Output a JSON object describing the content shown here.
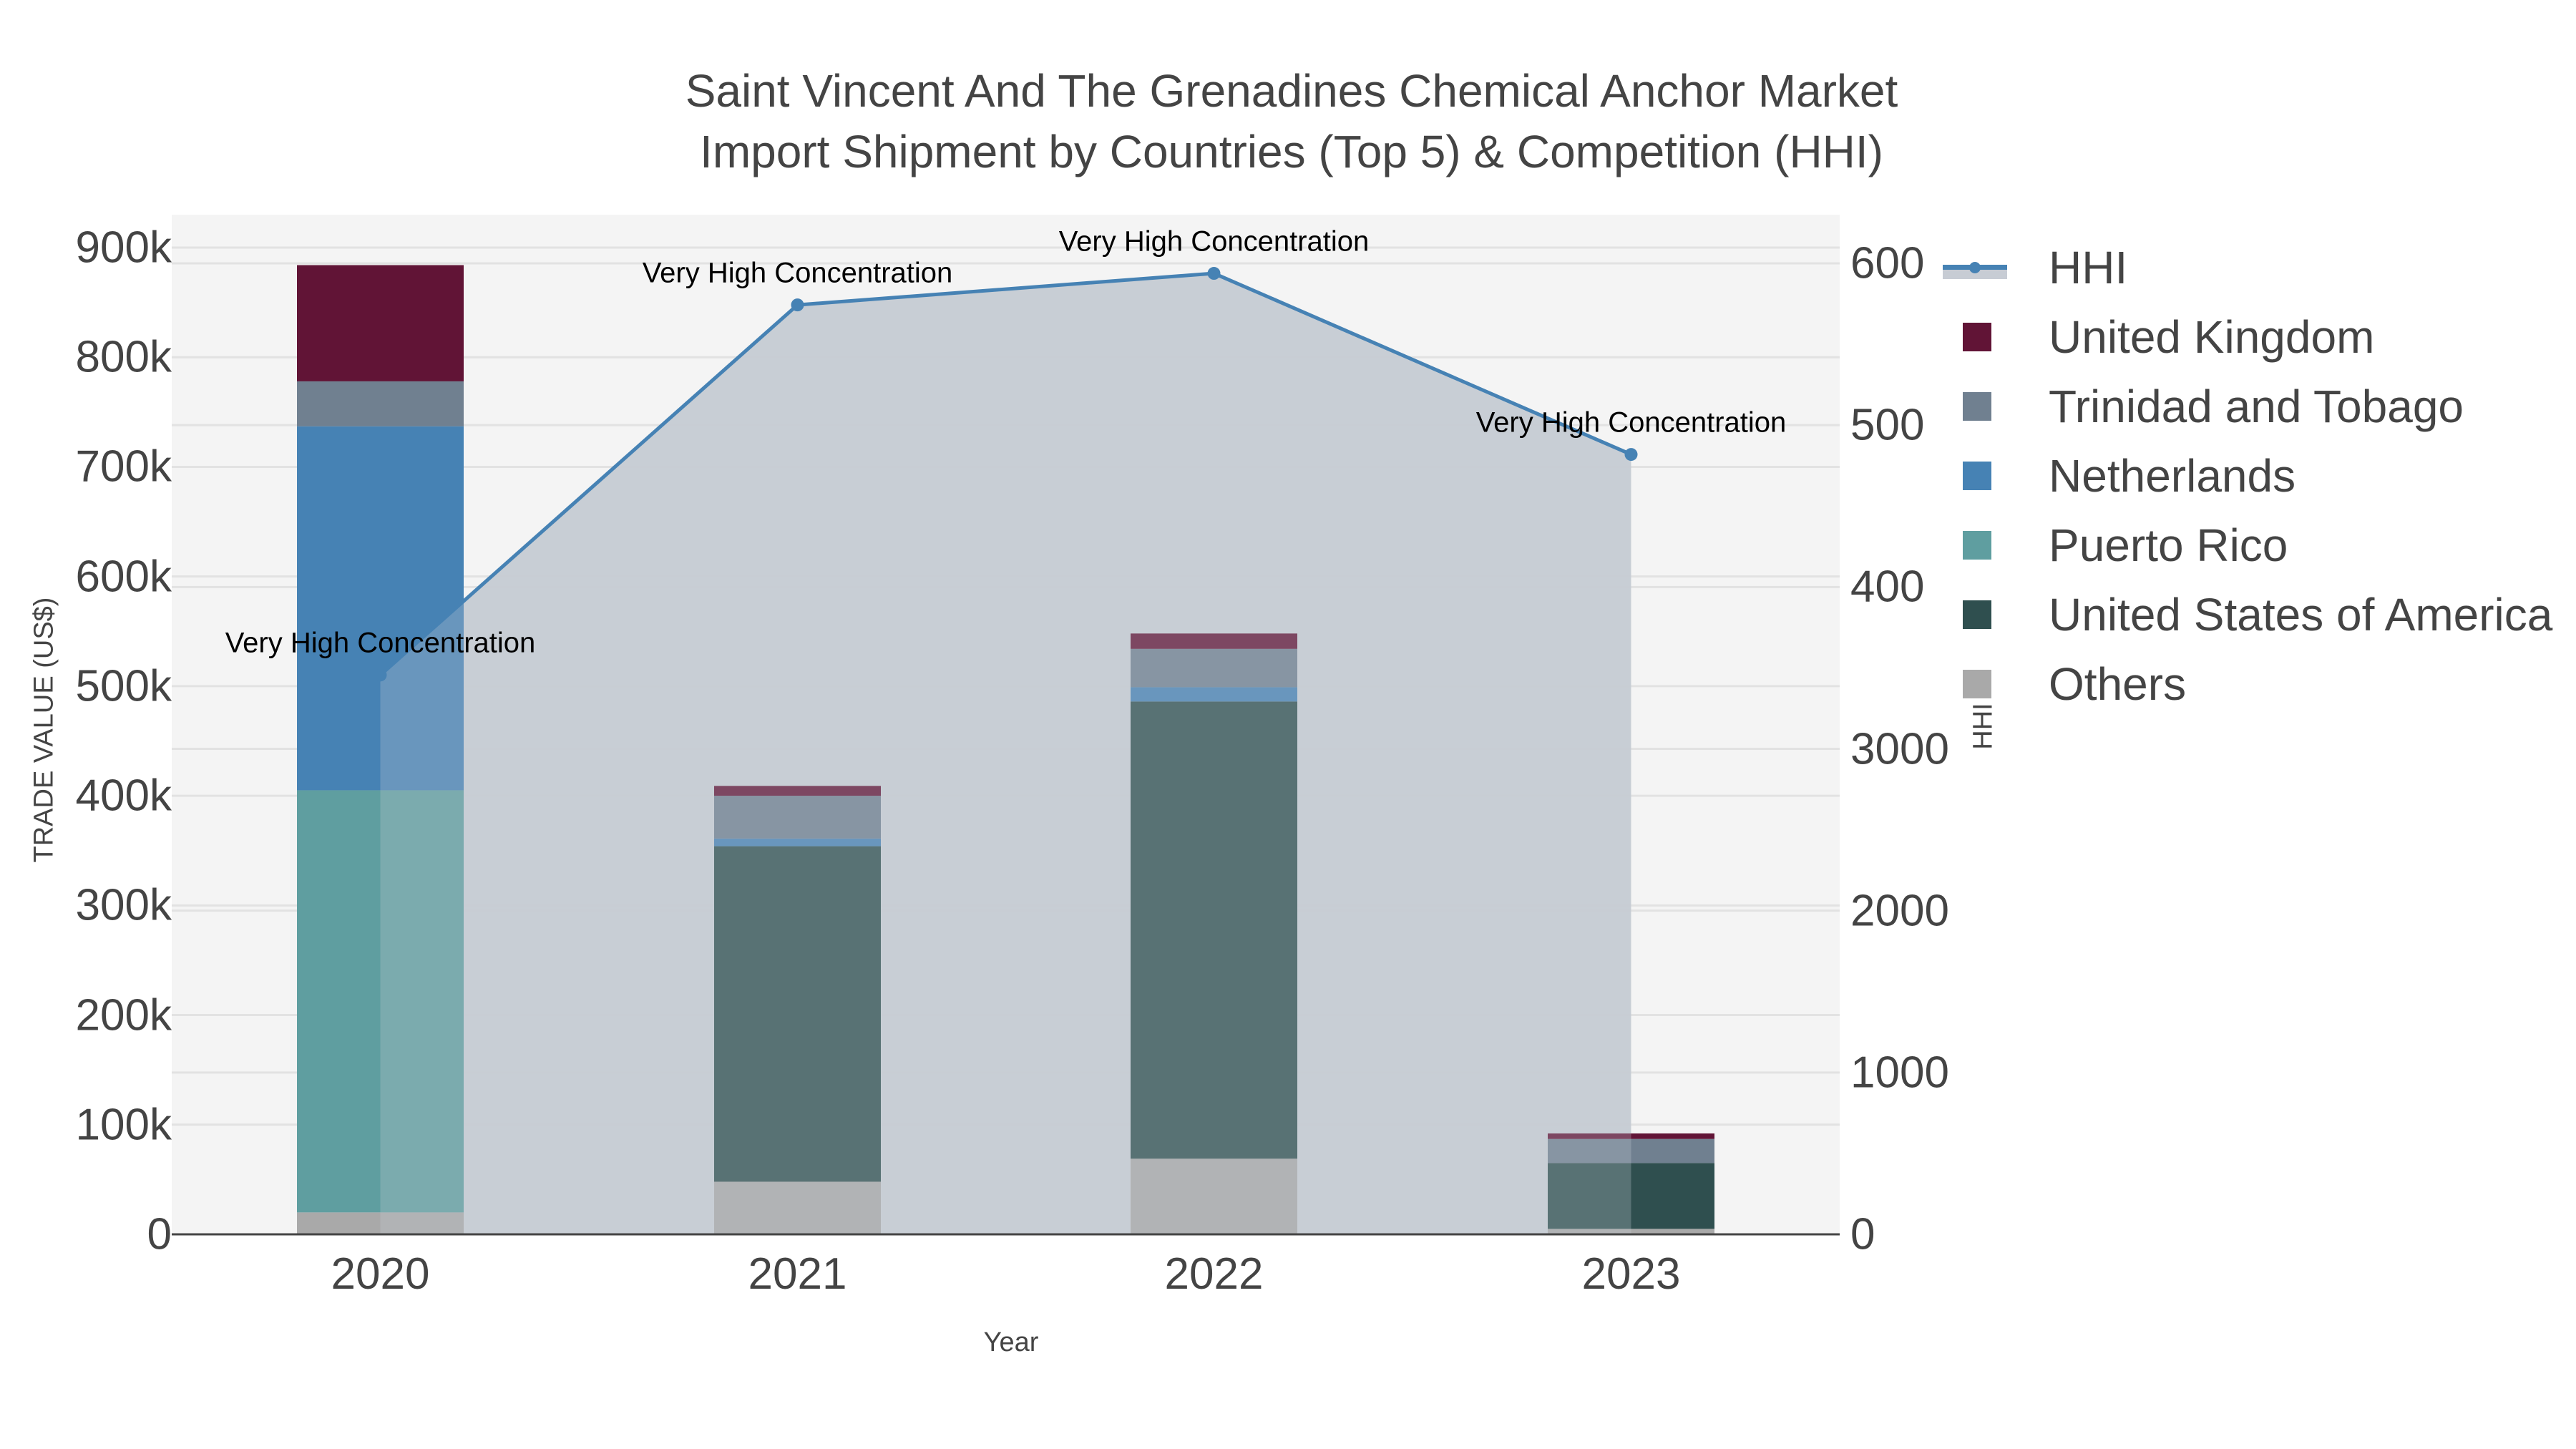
{
  "title": {
    "line1": "Saint Vincent And The Grenadines Chemical Anchor Market",
    "line2": "Import Shipment by Countries (Top 5) & Competition (HHI)"
  },
  "axes": {
    "x_title": "Year",
    "y_title": "TRADE VALUE (US$)",
    "y2_title": "HHI",
    "x_ticks": [
      "2020",
      "2021",
      "2022",
      "2023"
    ],
    "y_ticks": [
      "0",
      "100k",
      "200k",
      "300k",
      "400k",
      "500k",
      "600k",
      "700k",
      "800k",
      "900k"
    ],
    "y2_ticks": [
      "0",
      "1000",
      "2000",
      "3000",
      "400",
      "500",
      "600"
    ]
  },
  "legend": {
    "items": [
      {
        "label": "HHI",
        "type": "line",
        "color": "#4682b4"
      },
      {
        "label": "United Kingdom",
        "type": "bar",
        "color": "#611436"
      },
      {
        "label": "Trinidad and Tobago",
        "type": "bar",
        "color": "#708090"
      },
      {
        "label": "Netherlands",
        "type": "bar",
        "color": "#4682b4"
      },
      {
        "label": "Puerto Rico",
        "type": "bar",
        "color": "#5f9ea0"
      },
      {
        "label": "United States of America",
        "type": "bar",
        "color": "#2f4f4f"
      },
      {
        "label": "Others",
        "type": "bar",
        "color": "#a9a9a9"
      }
    ]
  },
  "annotations": [
    {
      "text": "Very High Concentration",
      "year": "2020"
    },
    {
      "text": "Very High Concentration",
      "year": "2021"
    },
    {
      "text": "Very High Concentration",
      "year": "2022"
    },
    {
      "text": "Very High Concentration",
      "year": "2023"
    }
  ],
  "chart_data": {
    "type": "bar",
    "stacked": true,
    "title": "Saint Vincent And The Grenadines Chemical Anchor Market Import Shipment by Countries (Top 5) & Competition (HHI)",
    "xlabel": "Year",
    "ylabel": "TRADE VALUE (US$)",
    "y2label": "HHI",
    "categories": [
      "2020",
      "2021",
      "2022",
      "2023"
    ],
    "ylim": [
      0,
      900000
    ],
    "y2lim": [
      0,
      6000
    ],
    "grid": true,
    "legend_position": "right",
    "series": [
      {
        "name": "Others",
        "type": "bar",
        "color": "#a9a9a9",
        "values": [
          20000,
          48000,
          69000,
          5000
        ]
      },
      {
        "name": "United States of America",
        "type": "bar",
        "color": "#2f4f4f",
        "values": [
          0,
          306000,
          417000,
          60000
        ]
      },
      {
        "name": "Puerto Rico",
        "type": "bar",
        "color": "#5f9ea0",
        "values": [
          385000,
          0,
          0,
          0
        ]
      },
      {
        "name": "Netherlands",
        "type": "bar",
        "color": "#4682b4",
        "values": [
          332000,
          7000,
          13000,
          0
        ]
      },
      {
        "name": "Trinidad and Tobago",
        "type": "bar",
        "color": "#708090",
        "values": [
          41000,
          39000,
          35000,
          22000
        ]
      },
      {
        "name": "United Kingdom",
        "type": "bar",
        "color": "#611436",
        "values": [
          106000,
          9000,
          14000,
          5000
        ]
      },
      {
        "name": "HHI",
        "type": "line",
        "axis": "y2",
        "fill": "tozeroy",
        "color": "#4682b4",
        "values": [
          3456,
          5743,
          5938,
          4819
        ],
        "labels": [
          "Very High Concentration",
          "Very High Concentration",
          "Very High Concentration",
          "Very High Concentration"
        ]
      }
    ]
  }
}
